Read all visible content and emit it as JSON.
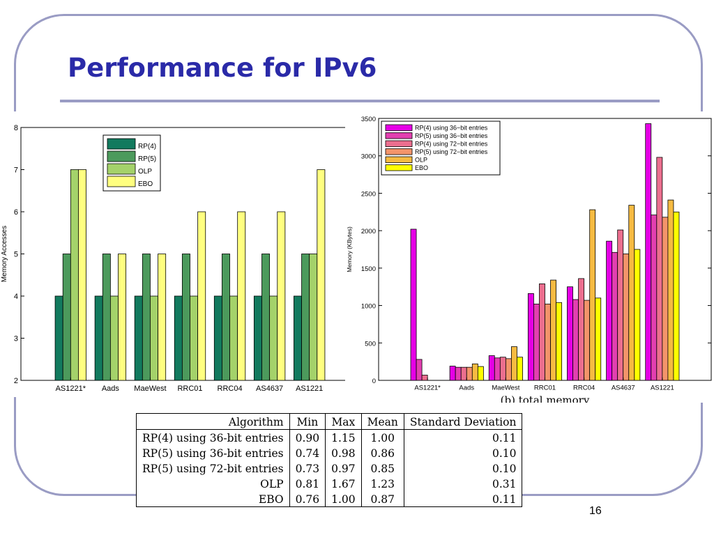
{
  "slide": {
    "title": "Performance for IPv6",
    "page_number": "16"
  },
  "colors": {
    "frame": "#9a9cc4",
    "title": "#2a2aa8"
  },
  "chart_data": [
    {
      "type": "bar",
      "title": "",
      "xlabel": "",
      "ylabel": "Memory Accesses",
      "ylim": [
        2,
        8
      ],
      "yticks": [
        2,
        3,
        4,
        5,
        6,
        7,
        8
      ],
      "legend_position": "top-center",
      "categories": [
        "AS1221*",
        "Aads",
        "MaeWest",
        "RRC01",
        "RRC04",
        "AS4637",
        "AS1221"
      ],
      "series": [
        {
          "name": "RP(4)",
          "color": "#127a5e",
          "values": [
            4,
            4,
            4,
            4,
            4,
            4,
            4
          ]
        },
        {
          "name": "RP(5)",
          "color": "#4c9a5c",
          "values": [
            5,
            5,
            5,
            5,
            5,
            5,
            5
          ]
        },
        {
          "name": "OLP",
          "color": "#a4d26a",
          "values": [
            7,
            4,
            4,
            4,
            4,
            4,
            5
          ]
        },
        {
          "name": "EBO",
          "color": "#ffff80",
          "values": [
            7,
            5,
            5,
            6,
            6,
            6,
            7
          ]
        }
      ]
    },
    {
      "type": "bar",
      "title": "(b) total memory",
      "xlabel": "",
      "ylabel": "Memory (KBytes)",
      "ylim": [
        0,
        3500
      ],
      "yticks": [
        0,
        500,
        1000,
        1500,
        2000,
        2500,
        3000,
        3500
      ],
      "legend_position": "top-left",
      "categories": [
        "AS1221*",
        "Aads",
        "MaeWest",
        "RRC01",
        "RRC04",
        "AS4637",
        "AS1221"
      ],
      "series": [
        {
          "name": "RP(4) using 36−bit entries",
          "color": "#e600e6",
          "values": [
            2020,
            190,
            330,
            1160,
            1250,
            1860,
            3430
          ]
        },
        {
          "name": "RP(5) using 36−bit entries",
          "color": "#e23fb0",
          "values": [
            280,
            175,
            300,
            1020,
            1080,
            1710,
            2210
          ]
        },
        {
          "name": "RP(4) using 72−bit entries",
          "color": "#ec6f8f",
          "values": [
            70,
            175,
            310,
            1290,
            1360,
            2010,
            2980
          ]
        },
        {
          "name": "RP(5) using 72−bit entries",
          "color": "#f3946a",
          "values": [
            0,
            175,
            290,
            1020,
            1070,
            1690,
            2180
          ]
        },
        {
          "name": "OLP",
          "color": "#f6bb42",
          "values": [
            0,
            220,
            450,
            1340,
            2280,
            2340,
            2410
          ]
        },
        {
          "name": "EBO",
          "color": "#ffff00",
          "values": [
            0,
            185,
            310,
            1040,
            1100,
            1750,
            2250
          ]
        }
      ]
    }
  ],
  "table": {
    "headers": [
      "Algorithm",
      "Min",
      "Max",
      "Mean",
      "Standard Deviation"
    ],
    "rows": [
      [
        "RP(4) using 36-bit entries",
        "0.90",
        "1.15",
        "1.00",
        "0.11"
      ],
      [
        "RP(5) using 36-bit entries",
        "0.74",
        "0.98",
        "0.86",
        "0.10"
      ],
      [
        "RP(5) using 72-bit entries",
        "0.73",
        "0.97",
        "0.85",
        "0.10"
      ],
      [
        "OLP",
        "0.81",
        "1.67",
        "1.23",
        "0.31"
      ],
      [
        "EBO",
        "0.76",
        "1.00",
        "0.87",
        "0.11"
      ]
    ]
  }
}
